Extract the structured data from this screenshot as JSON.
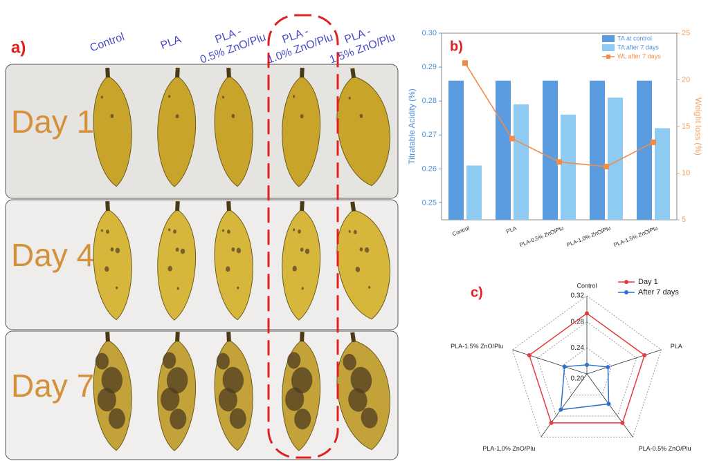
{
  "photo_panel": {
    "panel_label": "a)",
    "columns": [
      [
        "Control"
      ],
      [
        "PLA"
      ],
      [
        "PLA -",
        "0.5% ZnO/Plu"
      ],
      [
        "PLA -",
        "1.0% ZnO/Plu"
      ],
      [
        "PLA -",
        "1.5% ZnO/Plu"
      ]
    ],
    "rows": [
      "Day 1",
      "Day 4",
      "Day 7"
    ]
  },
  "chart_data": [
    {
      "type": "bar",
      "panel_label": "b)",
      "categories": [
        "Control",
        "PLA",
        "PLA-0.5% ZnO/Plu",
        "PLA-1.0% ZnO/Plu",
        "PLA-1.5% ZnO/Plu"
      ],
      "y_label": "Titratable Acidity (%)",
      "y2_label": "Weight loss (%)",
      "series": [
        {
          "name": "TA at control",
          "color": "#5b9be0",
          "values": [
            0.286,
            0.286,
            0.286,
            0.286,
            0.286
          ]
        },
        {
          "name": "TA after 7 days",
          "color": "#8fcaf2",
          "values": [
            0.261,
            0.279,
            0.276,
            0.281,
            0.272
          ]
        },
        {
          "name": "WL after 7 days",
          "color": "#f08c4a",
          "type": "line",
          "axis": "y2",
          "values": [
            21.8,
            13.7,
            11.2,
            10.7,
            13.3
          ]
        }
      ],
      "ylim": [
        0.245,
        0.3
      ],
      "yticks": [
        0.25,
        0.26,
        0.27,
        0.28,
        0.29,
        {
          "value": 0.3,
          "label": "0.30"
        }
      ],
      "y2lim": [
        5,
        25
      ],
      "y2ticks": [
        5,
        10,
        15,
        20,
        25
      ],
      "legend": "top-right"
    },
    {
      "type": "radar",
      "panel_label": "c)",
      "categories": [
        "Control",
        "PLA",
        "PLA-0.5% ZnO/Plu",
        "PLA-1.0% ZnO/Plu",
        "PLA-1.5% ZnO/Plu"
      ],
      "series": [
        {
          "name": "Day 1",
          "color": "#e03a3a",
          "values": [
            0.293,
            0.293,
            0.293,
            0.293,
            0.293
          ]
        },
        {
          "name": "After 7 days",
          "color": "#2f6fd0",
          "values": [
            0.214,
            0.234,
            0.257,
            0.268,
            0.236
          ]
        }
      ],
      "rlim": [
        0.2,
        0.32
      ],
      "rticks": [
        {
          "value": 0.2,
          "label": "0.20"
        },
        0.24,
        0.28,
        0.32
      ],
      "legend": "top-right"
    }
  ]
}
